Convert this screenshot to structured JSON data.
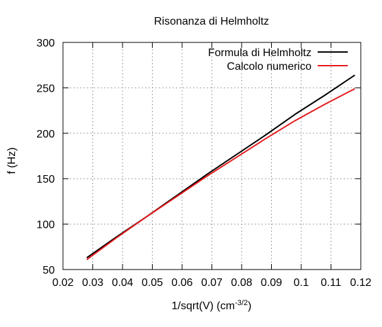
{
  "chart_data": {
    "type": "line",
    "title": "Risonanza di Helmholtz",
    "xlabel": "1/sqrt(V) (cm",
    "xlabel_sup": "-3/2",
    "xlabel_end": ")",
    "ylabel": "f (Hz)",
    "xlim": [
      0.02,
      0.12
    ],
    "ylim": [
      50,
      300
    ],
    "xticks": [
      0.02,
      0.03,
      0.04,
      0.05,
      0.06,
      0.07,
      0.08,
      0.09,
      0.1,
      0.11,
      0.12
    ],
    "xtick_labels": [
      "0.02",
      "0.03",
      "0.04",
      "0.05",
      "0.06",
      "0.07",
      "0.08",
      "0.09",
      "0.1",
      "0.11",
      "0.12"
    ],
    "yticks": [
      50,
      100,
      150,
      200,
      250,
      300
    ],
    "ytick_labels": [
      "50",
      "100",
      "150",
      "200",
      "250",
      "300"
    ],
    "grid": true,
    "legend_position": "top-right",
    "series": [
      {
        "name": "Formula di Helmholtz",
        "color": "#000000",
        "x": [
          0.028,
          0.038,
          0.048,
          0.058,
          0.068,
          0.078,
          0.088,
          0.098,
          0.108,
          0.118
        ],
        "y": [
          63,
          86,
          108,
          131,
          154,
          176,
          198,
          221,
          242,
          264
        ]
      },
      {
        "name": "Calcolo numerico",
        "color": "#e41a1c",
        "x": [
          0.028,
          0.038,
          0.048,
          0.058,
          0.068,
          0.078,
          0.088,
          0.098,
          0.108,
          0.118
        ],
        "y": [
          61,
          85,
          108,
          130,
          152,
          173,
          194,
          214,
          232,
          249
        ]
      }
    ]
  }
}
